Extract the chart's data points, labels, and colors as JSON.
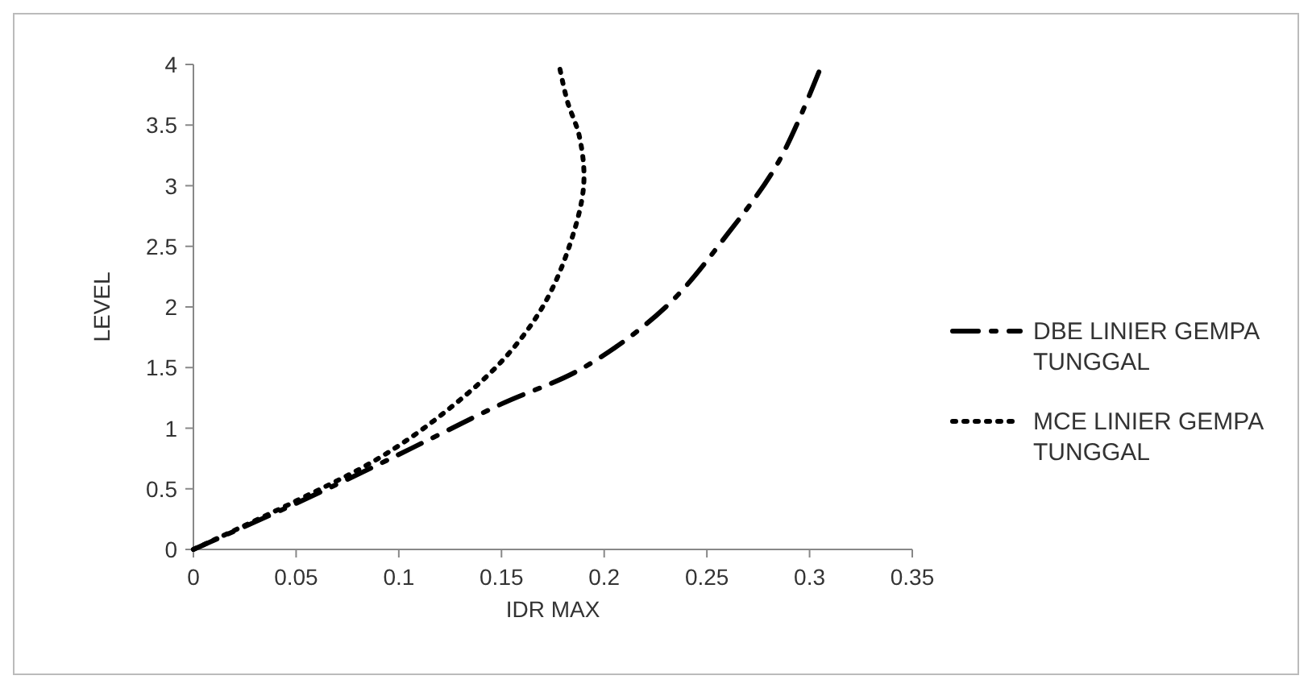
{
  "chart_data": {
    "type": "line",
    "xlabel": "IDR MAX",
    "ylabel": "LEVEL",
    "xlim": [
      0,
      0.35
    ],
    "xticks": [
      0,
      0.05,
      0.1,
      0.15,
      0.2,
      0.25,
      0.3,
      0.35
    ],
    "ylim": [
      0,
      4
    ],
    "yticks": [
      0,
      0.5,
      1,
      1.5,
      2,
      2.5,
      3,
      3.5,
      4
    ],
    "grid": false,
    "legend": "right",
    "marker": "none",
    "series": [
      {
        "name": "DBE LINIER GEMPA TUNGGAL",
        "color": "#000000",
        "line_style": "dashed",
        "x": [
          0,
          0.05,
          0.09,
          0.12,
          0.15,
          0.19,
          0.23,
          0.26,
          0.285,
          0.306
        ],
        "values": [
          0,
          0.38,
          0.7,
          0.95,
          1.2,
          1.5,
          2.0,
          2.6,
          3.2,
          4
        ]
      },
      {
        "name": "MCE LINIER GEMPA TUNGGAL",
        "color": "#000000",
        "line_style": "dotted",
        "x": [
          0,
          0.05,
          0.09,
          0.12,
          0.15,
          0.17,
          0.183,
          0.19,
          0.188,
          0.182,
          0.178
        ],
        "values": [
          0,
          0.4,
          0.75,
          1.1,
          1.55,
          2.0,
          2.5,
          3.0,
          3.4,
          3.7,
          4
        ]
      }
    ]
  }
}
